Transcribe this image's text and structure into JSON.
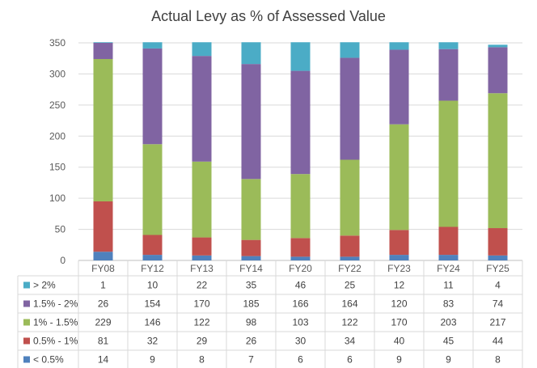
{
  "chart_data": {
    "type": "bar",
    "stacked": true,
    "title": "Actual Levy as % of Assessed Value",
    "categories": [
      "FY08",
      "FY12",
      "FY13",
      "FY14",
      "FY20",
      "FY22",
      "FY23",
      "FY24",
      "FY25"
    ],
    "y_ticks": [
      "0",
      "50",
      "100",
      "150",
      "200",
      "250",
      "300",
      "350"
    ],
    "ylim": [
      0,
      350
    ],
    "series": [
      {
        "name": "< 0.5%",
        "color": "#4f81bd",
        "values": [
          14,
          9,
          8,
          7,
          6,
          6,
          9,
          9,
          8
        ]
      },
      {
        "name": "0.5% - 1%",
        "color": "#c0504d",
        "values": [
          81,
          32,
          29,
          26,
          30,
          34,
          40,
          45,
          44
        ]
      },
      {
        "name": "1% - 1.5%",
        "color": "#9bbb59",
        "values": [
          229,
          146,
          122,
          98,
          103,
          122,
          170,
          203,
          217
        ]
      },
      {
        "name": "1.5% - 2%",
        "color": "#8064a2",
        "values": [
          26,
          154,
          170,
          185,
          166,
          164,
          120,
          83,
          74
        ]
      },
      {
        "name": "> 2%",
        "color": "#4bacc6",
        "values": [
          1,
          10,
          22,
          35,
          46,
          25,
          12,
          11,
          4
        ]
      }
    ],
    "table_row_order": [
      "> 2%",
      "1.5% - 2%",
      "1% - 1.5%",
      "0.5% - 1%",
      "< 0.5%"
    ]
  }
}
